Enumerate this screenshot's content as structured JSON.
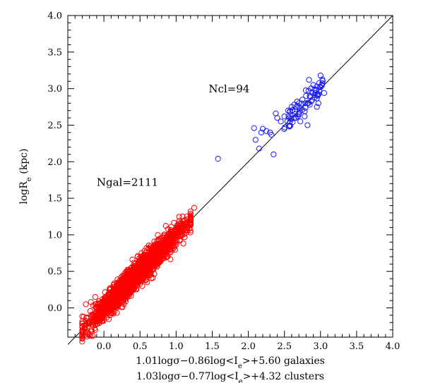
{
  "chart_data": {
    "type": "scatter",
    "title": "",
    "xlabel_line1": "1.01logσ−0.86log<I_e>+5.60  galaxies",
    "xlabel_line2": "1.03logσ−0.77log<I_e>+4.32  clusters",
    "ylabel": "logR_e (kpc)",
    "xlim": [
      -0.5,
      4.0
    ],
    "ylim": [
      -0.4,
      4.0
    ],
    "x_ticks": [
      "0.0",
      "0.5",
      "1.0",
      "1.5",
      "2.0",
      "2.5",
      "3.0",
      "3.5",
      "4.0"
    ],
    "y_ticks": [
      "0.0",
      "0.5",
      "1.0",
      "1.5",
      "2.0",
      "2.5",
      "3.0",
      "3.5",
      "4.0"
    ],
    "grid": false,
    "reference_line": {
      "from": [
        -0.5,
        -0.5
      ],
      "to": [
        4.0,
        4.0
      ]
    },
    "annotations": [
      {
        "text": "Ngal=2111",
        "x": -0.1,
        "y": 1.67
      },
      {
        "text": "Ncl=94",
        "x": 1.45,
        "y": 2.95
      }
    ],
    "series": [
      {
        "label": "galaxies",
        "color": "#ff0000",
        "marker": "open-circle",
        "n": 2111,
        "relation": {
          "x_from": -0.3,
          "x_to": 1.25,
          "scatter": 0.08
        },
        "points": [
          [
            -0.28,
            -0.12
          ],
          [
            -0.25,
            0.05
          ],
          [
            -0.22,
            -0.2
          ],
          [
            -0.18,
            0.08
          ],
          [
            -0.15,
            -0.1
          ],
          [
            -0.12,
            0.15
          ],
          [
            -0.1,
            -0.22
          ],
          [
            -0.08,
            0.02
          ],
          [
            -0.05,
            -0.05
          ],
          [
            0.0,
            0.1
          ],
          [
            0.05,
            -0.02
          ],
          [
            0.1,
            0.22
          ],
          [
            0.15,
            0.12
          ],
          [
            0.2,
            0.3
          ],
          [
            0.25,
            0.18
          ],
          [
            0.3,
            0.4
          ],
          [
            0.35,
            0.25
          ],
          [
            0.4,
            0.48
          ],
          [
            0.45,
            0.35
          ],
          [
            0.5,
            0.58
          ],
          [
            0.55,
            0.45
          ],
          [
            0.6,
            0.68
          ],
          [
            0.65,
            0.55
          ],
          [
            0.7,
            0.75
          ],
          [
            0.75,
            0.62
          ],
          [
            0.8,
            0.88
          ],
          [
            0.85,
            0.72
          ],
          [
            0.9,
            0.9
          ],
          [
            0.95,
            0.8
          ],
          [
            1.0,
            1.05
          ],
          [
            1.05,
            0.92
          ],
          [
            1.1,
            1.12
          ],
          [
            1.15,
            1.25
          ],
          [
            1.2,
            1.32
          ],
          [
            1.25,
            1.37
          ],
          [
            0.95,
            0.84
          ],
          [
            1.1,
            0.88
          ],
          [
            0.85,
            0.88
          ],
          [
            1.12,
            1.2
          ]
        ]
      },
      {
        "label": "clusters",
        "color": "#1a1aff",
        "marker": "open-circle",
        "n": 94,
        "relation": {
          "x_from": 2.45,
          "x_to": 3.05,
          "scatter": 0.07
        },
        "points": [
          [
            1.58,
            2.04
          ],
          [
            2.08,
            2.46
          ],
          [
            2.1,
            2.3
          ],
          [
            2.15,
            2.18
          ],
          [
            2.18,
            2.4
          ],
          [
            2.2,
            2.45
          ],
          [
            2.25,
            2.42
          ],
          [
            2.3,
            2.4
          ],
          [
            2.32,
            2.37
          ],
          [
            2.35,
            2.1
          ],
          [
            2.38,
            2.66
          ],
          [
            2.4,
            2.6
          ],
          [
            2.45,
            2.55
          ],
          [
            2.5,
            2.62
          ],
          [
            2.55,
            2.7
          ],
          [
            2.6,
            2.75
          ],
          [
            2.65,
            2.65
          ],
          [
            2.7,
            2.8
          ],
          [
            2.75,
            2.85
          ],
          [
            2.8,
            2.9
          ],
          [
            2.85,
            2.78
          ],
          [
            2.88,
            2.95
          ],
          [
            2.9,
            3.05
          ],
          [
            2.95,
            2.75
          ],
          [
            3.0,
            3.02
          ],
          [
            3.02,
            3.05
          ],
          [
            3.05,
            2.94
          ],
          [
            2.72,
            2.55
          ],
          [
            2.78,
            2.62
          ],
          [
            2.92,
            2.88
          ],
          [
            2.97,
            2.8
          ],
          [
            2.66,
            2.6
          ],
          [
            2.84,
            3.12
          ],
          [
            2.82,
            2.5
          ]
        ]
      }
    ]
  }
}
